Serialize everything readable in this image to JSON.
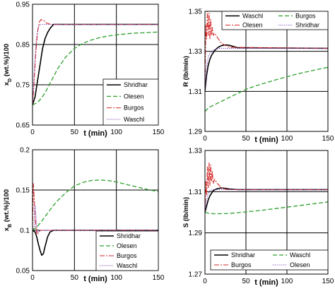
{
  "chart_data": [
    {
      "type": "line",
      "ylabel": "x_D (wt.%)/100",
      "ylabel_main": "x",
      "ylabel_sub": "D",
      "ylabel_rest": " (wt.%)/100",
      "xlabel": "t (min)",
      "xlim": [
        0,
        150
      ],
      "ylim": [
        0.65,
        0.95
      ],
      "xticks": [
        0,
        50,
        100,
        150
      ],
      "xtick_labels": [
        "0",
        "50",
        "100",
        "150"
      ],
      "yticks": [
        0.65,
        0.75,
        0.85,
        0.95
      ],
      "ytick_labels": [
        "0.65",
        "0.75",
        "0.85",
        "0.95"
      ],
      "grid": true,
      "legend_position": "bottom-right",
      "series": [
        {
          "name": "Shridhar",
          "color": "#000000",
          "dash": "solid",
          "x": [
            0,
            3,
            6,
            9,
            12,
            15,
            18,
            21,
            25,
            150
          ],
          "y": [
            0.7,
            0.72,
            0.76,
            0.8,
            0.84,
            0.865,
            0.88,
            0.89,
            0.9,
            0.9
          ]
        },
        {
          "name": "Olesen",
          "color": "#2ca02c",
          "dash": "dashed",
          "x": [
            0,
            5,
            10,
            15,
            20,
            25,
            30,
            40,
            50,
            60,
            70,
            80,
            90,
            100,
            110,
            120,
            130,
            140,
            150
          ],
          "y": [
            0.7,
            0.705,
            0.715,
            0.73,
            0.75,
            0.77,
            0.79,
            0.82,
            0.84,
            0.853,
            0.861,
            0.867,
            0.871,
            0.874,
            0.876,
            0.878,
            0.879,
            0.88,
            0.881
          ]
        },
        {
          "name": "Burgos",
          "color": "#d62728",
          "dash": "dashdot",
          "x": [
            0,
            2,
            4,
            6,
            8,
            10,
            13,
            17,
            22,
            150
          ],
          "y": [
            0.7,
            0.76,
            0.83,
            0.88,
            0.905,
            0.912,
            0.91,
            0.903,
            0.9,
            0.9
          ]
        },
        {
          "name": "Waschl",
          "color": "#7b3fb5",
          "dash": "dotted",
          "x": [
            0,
            2,
            4,
            6,
            8,
            10,
            14,
            150
          ],
          "y": [
            0.7,
            0.78,
            0.85,
            0.885,
            0.898,
            0.9,
            0.9,
            0.9
          ]
        }
      ]
    },
    {
      "type": "line",
      "ylabel": "R (lb/min)",
      "xlabel": "t (min)",
      "xlim": [
        0,
        150
      ],
      "ylim": [
        1.29,
        1.35
      ],
      "xticks": [
        0,
        50,
        100,
        150
      ],
      "xtick_labels": [
        "0",
        "50",
        "100",
        "150"
      ],
      "yticks": [
        1.29,
        1.31,
        1.33,
        1.35
      ],
      "ytick_labels": [
        "1.29",
        "1.31",
        "1.33",
        "1.35"
      ],
      "grid": true,
      "legend_position": "top-right",
      "series": [
        {
          "name": "Waschl",
          "color": "#000000",
          "dash": "solid",
          "x": [
            0,
            2,
            4,
            6,
            8,
            12,
            16,
            20,
            25,
            30,
            40,
            150
          ],
          "y": [
            1.31,
            1.318,
            1.323,
            1.326,
            1.328,
            1.3305,
            1.332,
            1.3328,
            1.3332,
            1.333,
            1.3318,
            1.3315
          ]
        },
        {
          "name": "Burgos",
          "color": "#2ca02c",
          "dash": "dashed",
          "x": [
            0,
            5,
            10,
            20,
            30,
            40,
            50,
            60,
            70,
            80,
            90,
            100,
            110,
            120,
            130,
            140,
            150
          ],
          "y": [
            1.3,
            1.302,
            1.303,
            1.305,
            1.307,
            1.309,
            1.311,
            1.3125,
            1.3138,
            1.315,
            1.3162,
            1.3173,
            1.3184,
            1.3194,
            1.3203,
            1.3212,
            1.322
          ]
        },
        {
          "name": "Olesen",
          "color": "#d62728",
          "dash": "dashdot",
          "x": [
            0,
            1,
            2,
            3,
            4,
            5,
            6,
            7,
            8,
            9,
            10,
            12,
            15,
            20,
            25,
            30,
            150
          ],
          "y": [
            1.31,
            1.343,
            1.336,
            1.35,
            1.338,
            1.349,
            1.336,
            1.346,
            1.338,
            1.342,
            1.338,
            1.339,
            1.337,
            1.334,
            1.333,
            1.332,
            1.3315
          ]
        },
        {
          "name": "Shridhar",
          "color": "#7b3fb5",
          "dash": "dotted",
          "x": [
            0,
            2,
            4,
            6,
            10,
            15,
            150
          ],
          "y": [
            1.31,
            1.322,
            1.327,
            1.329,
            1.3305,
            1.3315,
            1.3315
          ]
        }
      ]
    },
    {
      "type": "line",
      "ylabel": "x_B (wt.%)/100",
      "ylabel_main": "x",
      "ylabel_sub": "B",
      "ylabel_rest": " (wt.%)/100",
      "xlabel": "t (min)",
      "xlim": [
        0,
        150
      ],
      "ylim": [
        0.05,
        0.2
      ],
      "xticks": [
        0,
        50,
        100,
        150
      ],
      "xtick_labels": [
        "0",
        "50",
        "100",
        "150"
      ],
      "yticks": [
        0.05,
        0.1,
        0.15,
        0.2
      ],
      "ytick_labels": [
        "0.05",
        "0.1",
        "0.15",
        "0.2"
      ],
      "grid": true,
      "legend_position": "bottom-right",
      "series": [
        {
          "name": "Shridhar",
          "color": "#000000",
          "dash": "solid",
          "x": [
            0,
            3,
            5,
            7,
            9,
            11,
            13,
            15,
            18,
            21,
            25,
            150
          ],
          "y": [
            0.1,
            0.098,
            0.092,
            0.083,
            0.075,
            0.069,
            0.071,
            0.08,
            0.092,
            0.098,
            0.1,
            0.1
          ]
        },
        {
          "name": "Olesen",
          "color": "#2ca02c",
          "dash": "dashed",
          "x": [
            0,
            5,
            10,
            15,
            20,
            25,
            30,
            40,
            50,
            60,
            70,
            80,
            90,
            100,
            110,
            120,
            130,
            140,
            150
          ],
          "y": [
            0.1,
            0.104,
            0.11,
            0.117,
            0.124,
            0.131,
            0.137,
            0.147,
            0.155,
            0.1595,
            0.1618,
            0.1625,
            0.1618,
            0.16,
            0.1575,
            0.155,
            0.1525,
            0.15,
            0.148
          ]
        },
        {
          "name": "Burgos",
          "color": "#d62728",
          "dash": "dashdot",
          "x": [
            0,
            1,
            2,
            3,
            4,
            5,
            6,
            8,
            10,
            12,
            150
          ],
          "y": [
            0.1,
            0.158,
            0.14,
            0.118,
            0.106,
            0.096,
            0.095,
            0.099,
            0.1,
            0.1,
            0.1
          ]
        },
        {
          "name": "Waschl",
          "color": "#7b3fb5",
          "dash": "dotted",
          "x": [
            0,
            2,
            3,
            4,
            5,
            6,
            8,
            12,
            150
          ],
          "y": [
            0.1,
            0.104,
            0.131,
            0.12,
            0.105,
            0.097,
            0.099,
            0.1,
            0.1
          ]
        }
      ]
    },
    {
      "type": "line",
      "ylabel": "S (lb/min)",
      "xlabel": "t (min)",
      "xlim": [
        0,
        150
      ],
      "ylim": [
        1.27,
        1.33
      ],
      "xticks": [
        0,
        50,
        100,
        150
      ],
      "xtick_labels": [
        "0",
        "50",
        "100",
        "150"
      ],
      "yticks": [
        1.27,
        1.29,
        1.31,
        1.33
      ],
      "ytick_labels": [
        "1.27",
        "1.29",
        "1.31",
        "1.33"
      ],
      "grid": true,
      "legend_position": "bottom",
      "legend_columns": 2,
      "series": [
        {
          "name": "Shridhar",
          "color": "#000000",
          "dash": "solid",
          "x": [
            0,
            2,
            4,
            6,
            10,
            15,
            20,
            25,
            30,
            40,
            150
          ],
          "y": [
            1.3,
            1.303,
            1.306,
            1.308,
            1.3105,
            1.3115,
            1.3118,
            1.3116,
            1.3113,
            1.311,
            1.311
          ]
        },
        {
          "name": "Waschl",
          "color": "#2ca02c",
          "dash": "dashed",
          "x": [
            0,
            5,
            10,
            20,
            30,
            40,
            50,
            60,
            70,
            80,
            90,
            100,
            110,
            120,
            130,
            140,
            150
          ],
          "y": [
            1.3,
            1.2995,
            1.2993,
            1.2993,
            1.2995,
            1.2998,
            1.3002,
            1.3006,
            1.301,
            1.3015,
            1.302,
            1.3025,
            1.303,
            1.3035,
            1.304,
            1.3045,
            1.305
          ]
        },
        {
          "name": "Burgos",
          "color": "#d62728",
          "dash": "dashdot",
          "x": [
            0,
            1,
            2,
            3,
            4,
            5,
            6,
            7,
            8,
            9,
            10,
            12,
            15,
            20,
            25,
            30,
            150
          ],
          "y": [
            1.3,
            1.315,
            1.308,
            1.322,
            1.312,
            1.324,
            1.313,
            1.323,
            1.315,
            1.32,
            1.314,
            1.316,
            1.314,
            1.312,
            1.3112,
            1.311,
            1.311
          ]
        },
        {
          "name": "Olesen",
          "color": "#7b3fb5",
          "dash": "dotted",
          "x": [
            0,
            2,
            4,
            6,
            10,
            15,
            150
          ],
          "y": [
            1.3,
            1.306,
            1.309,
            1.3105,
            1.311,
            1.311,
            1.311
          ]
        }
      ]
    }
  ]
}
